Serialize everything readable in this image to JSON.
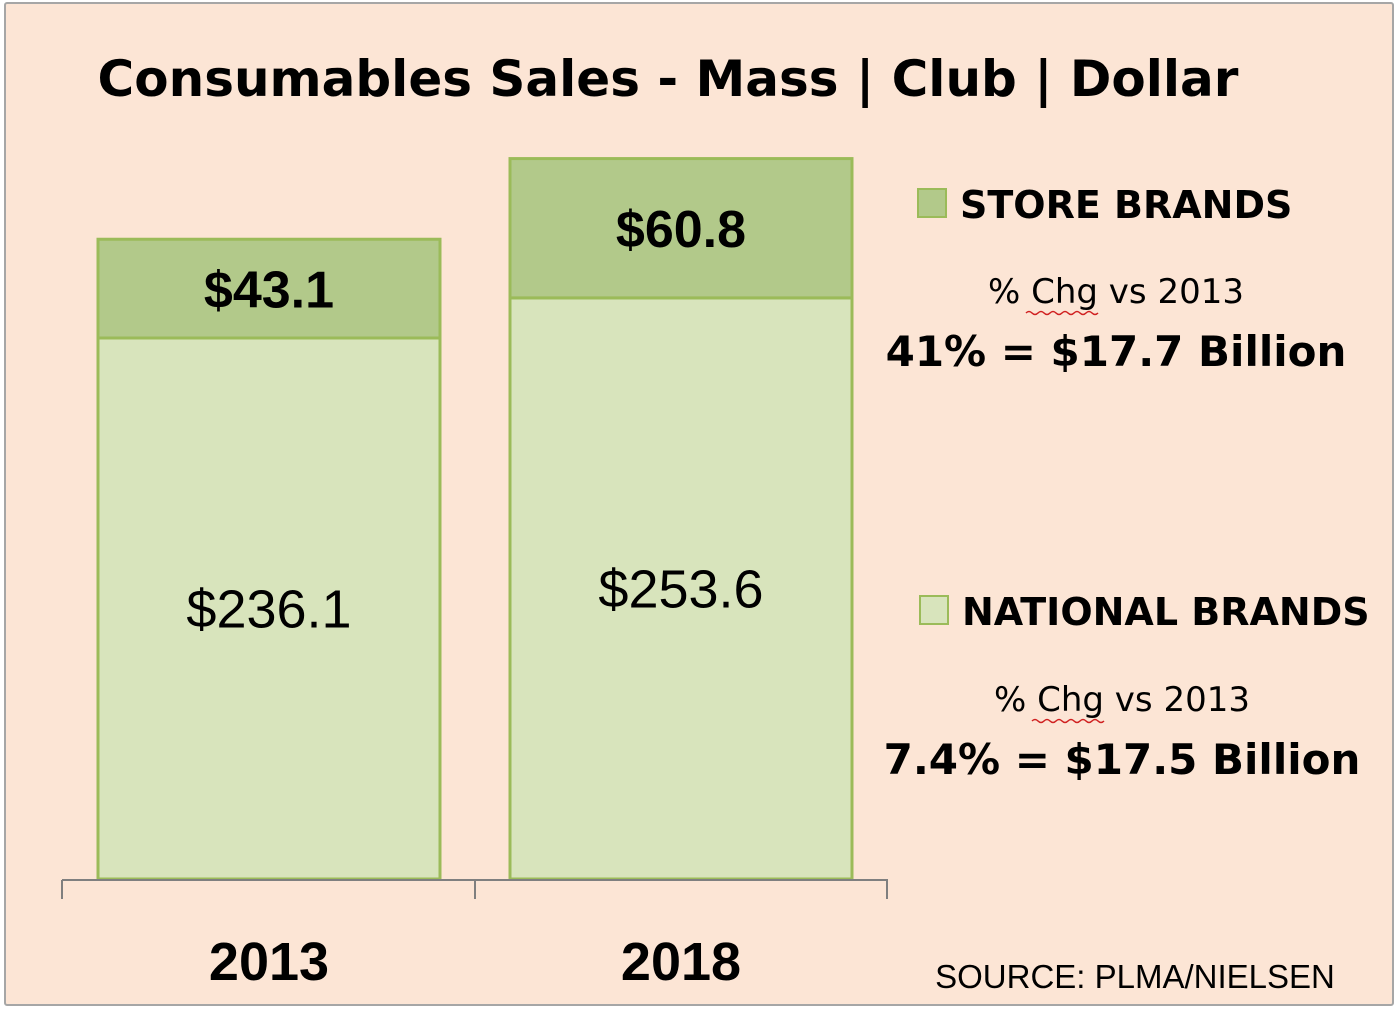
{
  "chart_data": {
    "type": "bar",
    "stacked": true,
    "title": "Consumables Sales - Mass | Club | Dollar",
    "categories": [
      "2013",
      "2018"
    ],
    "series": [
      {
        "name": "NATIONAL BRANDS",
        "values": [
          236.1,
          253.6
        ],
        "labels": [
          "$236.1",
          "$253.6"
        ],
        "color": "#d8e4bc",
        "border": "#9bbb59"
      },
      {
        "name": "STORE BRANDS",
        "values": [
          43.1,
          60.8
        ],
        "labels": [
          "$43.1",
          "$60.8"
        ],
        "color": "#b2c98a",
        "border": "#9bbb59"
      }
    ],
    "ylim": [
      0,
      320
    ],
    "xlabel": "",
    "ylabel": "",
    "legend": [
      {
        "name": "STORE BRANDS",
        "caption_prefix": "% Chg vs",
        "caption_year": "2013",
        "change": "41% = $17.7 Billion"
      },
      {
        "name": "NATIONAL BRANDS",
        "caption_prefix": "% Chg vs",
        "caption_year": "2013",
        "change": "7.4% = $17.5 Billion"
      }
    ],
    "source": "SOURCE:  PLMA/NIELSEN"
  }
}
